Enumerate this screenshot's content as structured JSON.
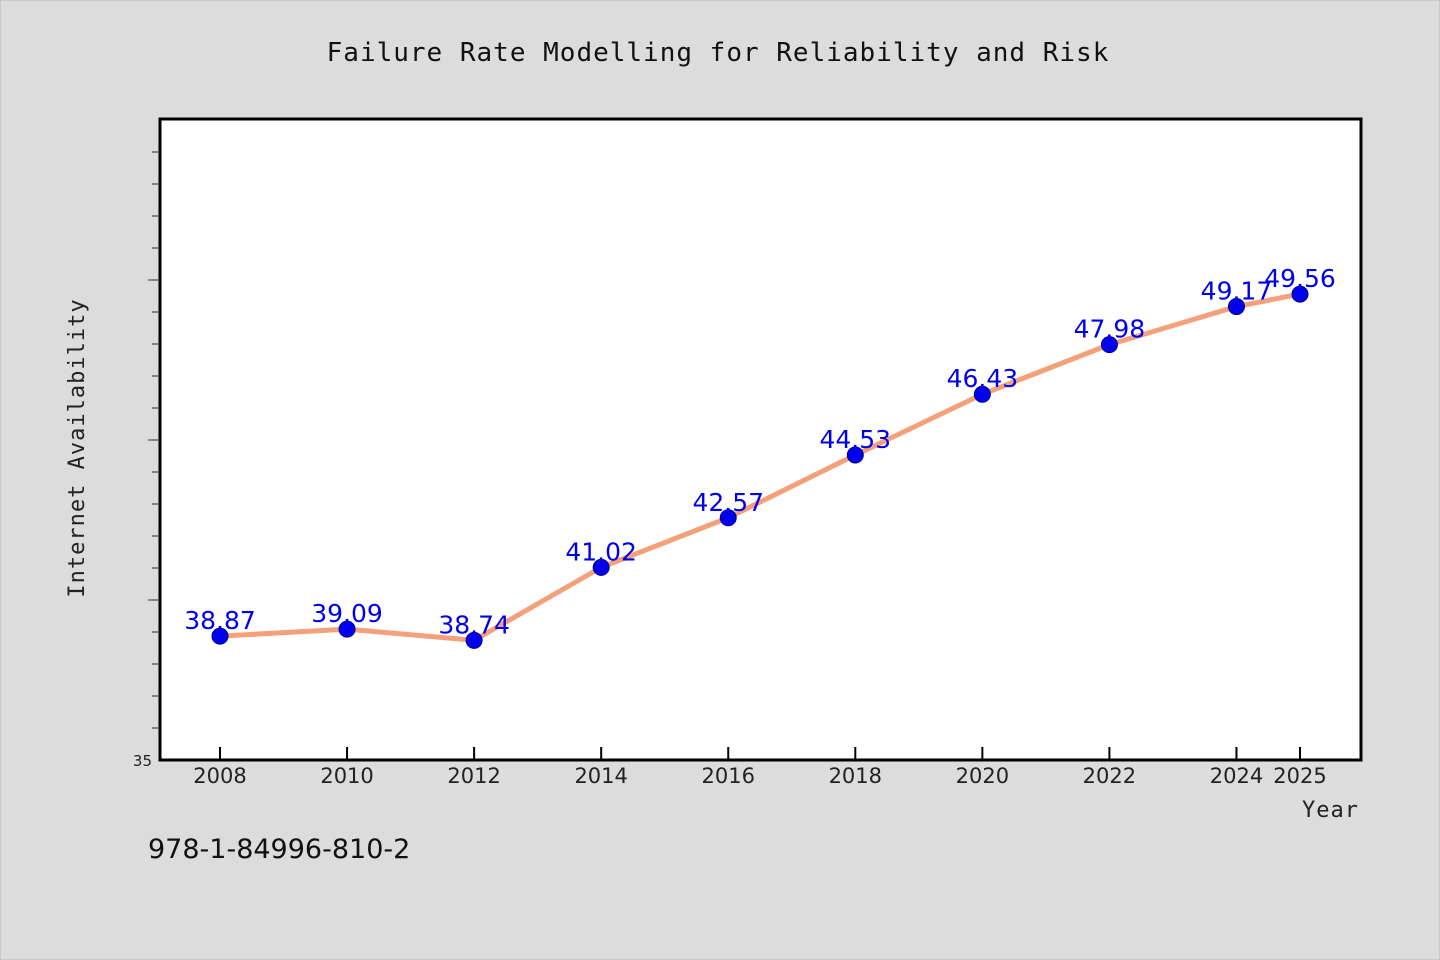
{
  "chart_data": {
    "type": "line",
    "title": "Failure Rate Modelling for Reliability and Risk",
    "xlabel": "Year",
    "ylabel": "Internet Availability",
    "x": [
      2008,
      2010,
      2012,
      2014,
      2016,
      2018,
      2020,
      2022,
      2024,
      2025
    ],
    "x_tick_labels": [
      "2008",
      "2010",
      "2012",
      "2014",
      "2016",
      "2018",
      "2020",
      "2022",
      "2024",
      "2025"
    ],
    "series": [
      {
        "values": [
          38.87,
          39.09,
          38.74,
          41.02,
          42.57,
          44.53,
          46.43,
          47.98,
          49.17,
          49.56
        ],
        "labels": [
          "38.87",
          "39.09",
          "38.74",
          "41.02",
          "42.57",
          "44.53",
          "46.43",
          "47.98",
          "49.17",
          "49.56"
        ],
        "line_color": "#f4a07a",
        "marker_color": "#0000ee",
        "label_color": "#0000ee"
      }
    ],
    "ylim": [
      35,
      55
    ],
    "y_tick_label_min": "35",
    "grid": false,
    "legend": "none"
  },
  "footer": {
    "isbn": "978-1-84996-810-2"
  },
  "colors": {
    "background": "#dcdcdc",
    "plot_area": "#ffffff"
  }
}
